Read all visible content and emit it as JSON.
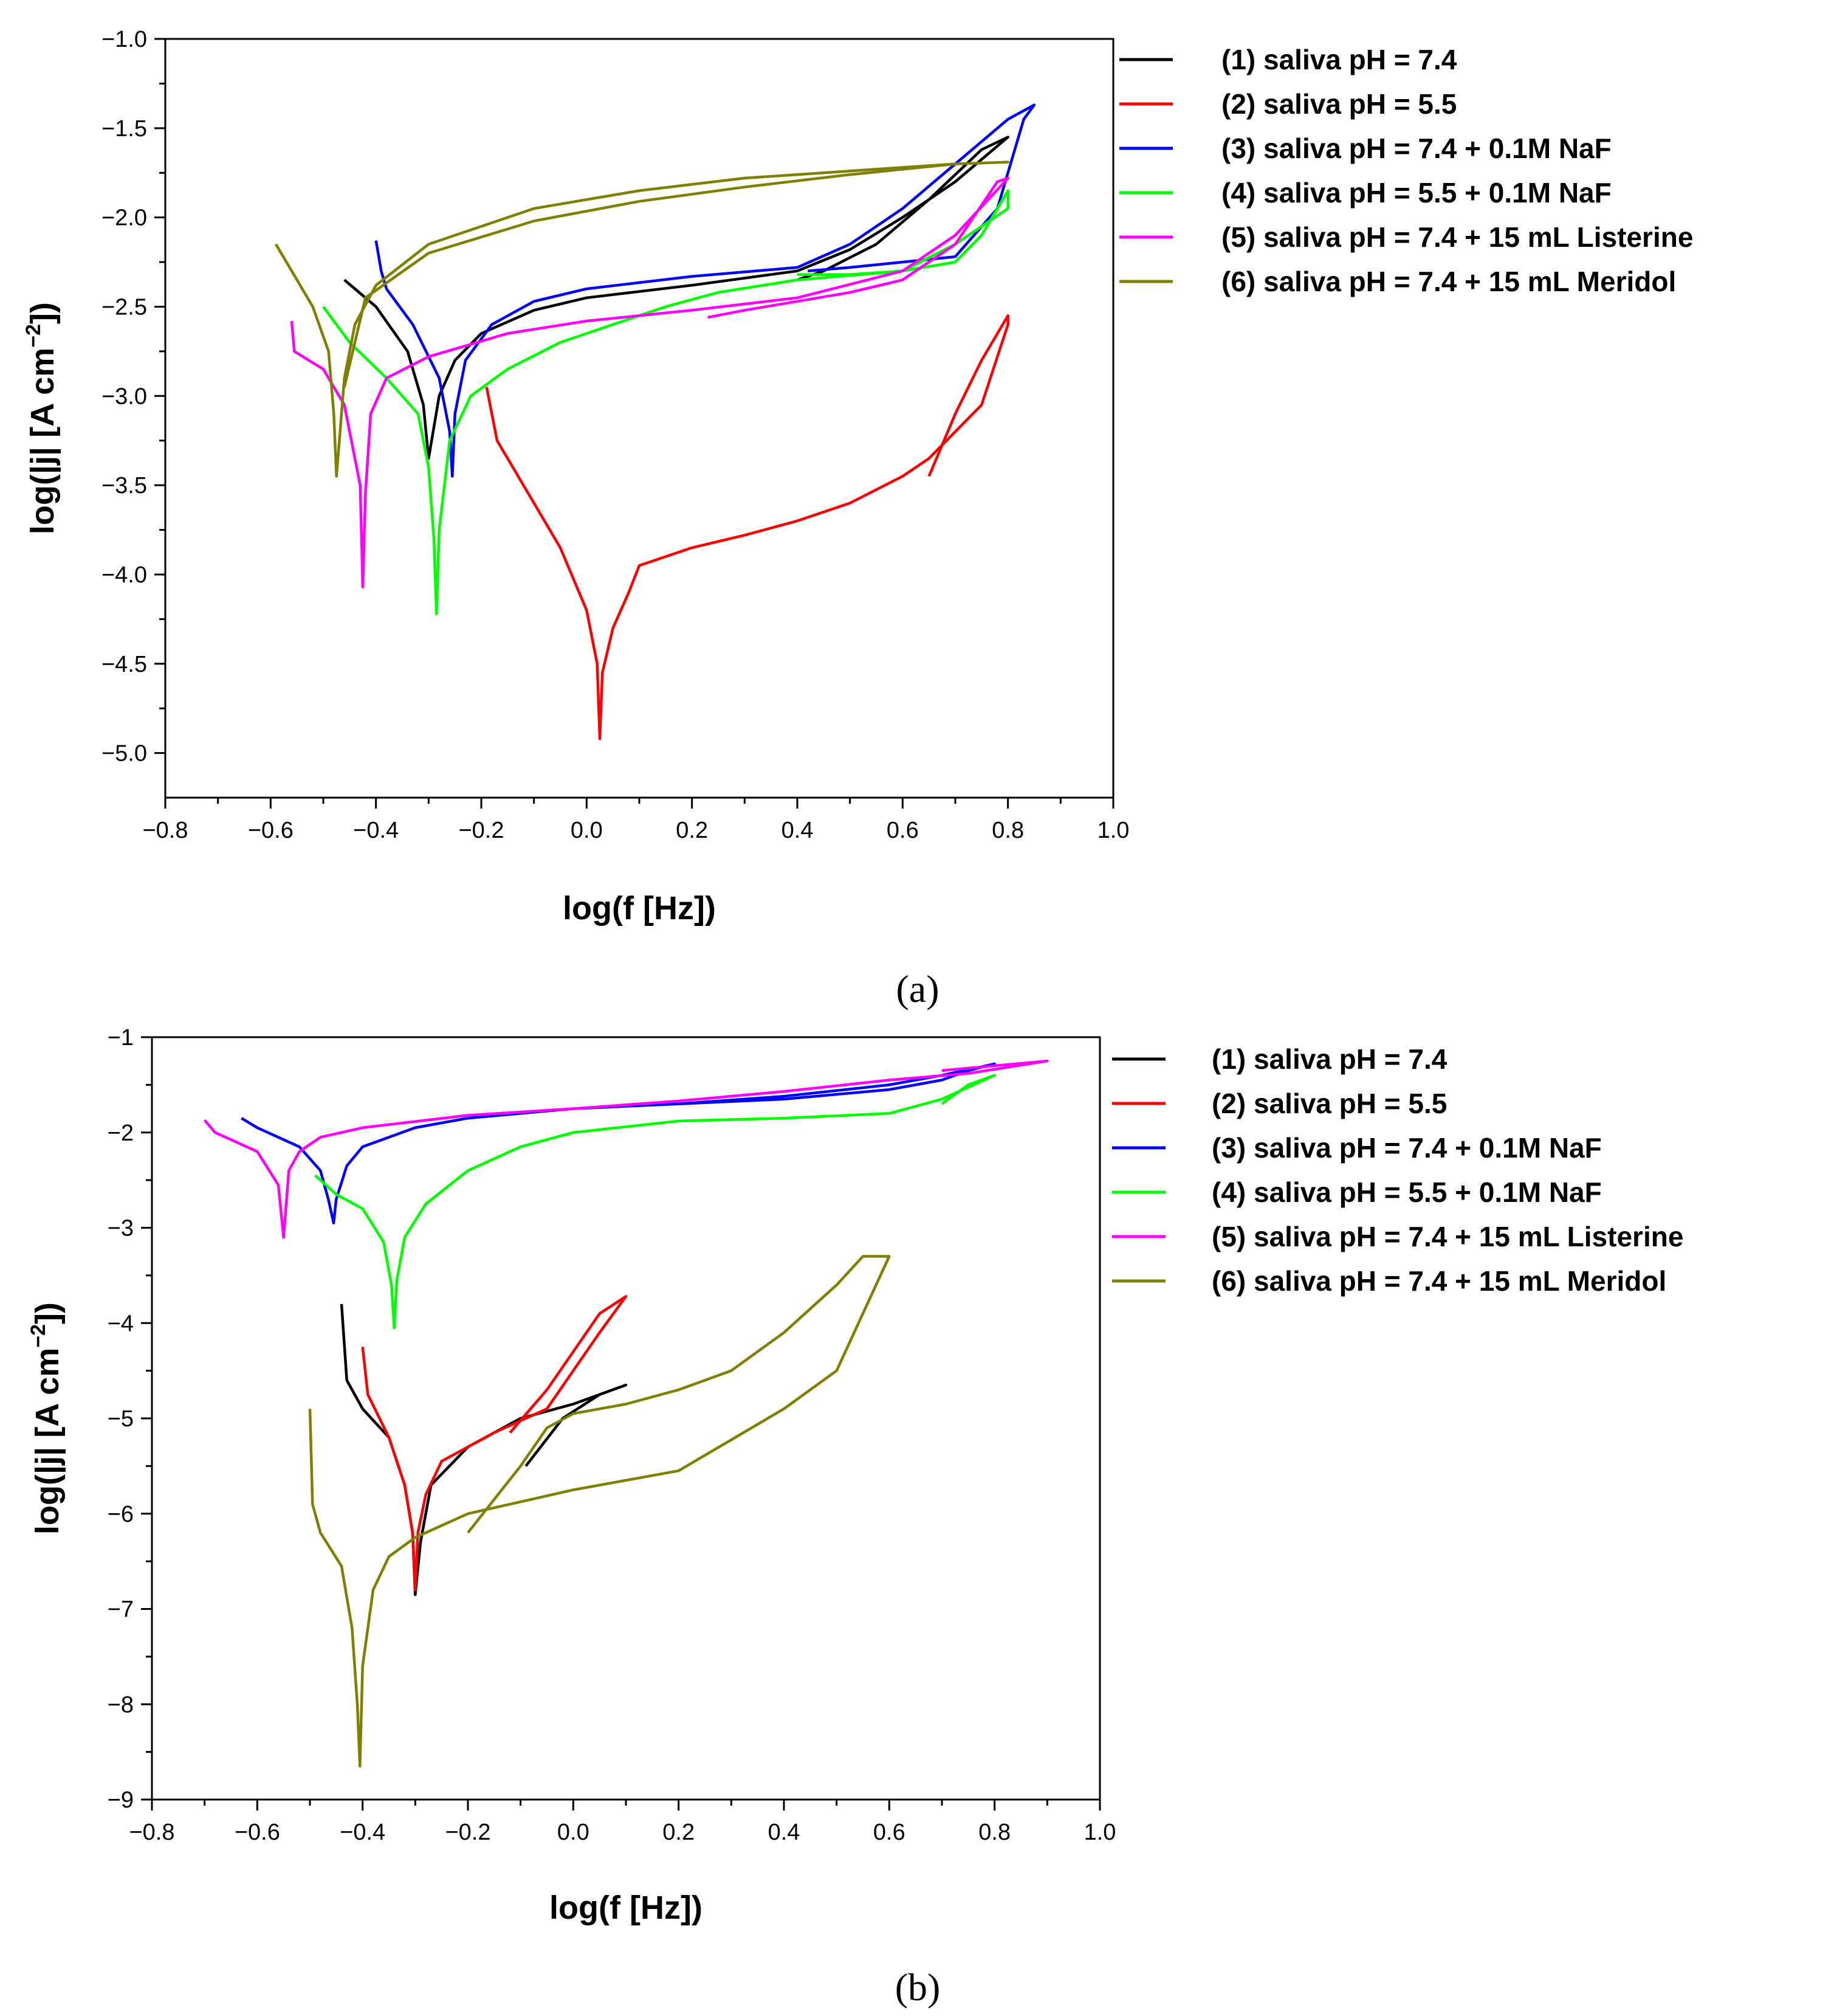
{
  "chart_data": [
    {
      "type": "line",
      "panel": "a",
      "caption": "(a)",
      "xlabel": "log(f [Hz])",
      "ylabel": "log(|j| [A cm−2])",
      "ylabel_parts": {
        "base": "log(|j| [A cm",
        "sup": "−2",
        "close": "])"
      },
      "xlim": [
        -0.8,
        1.0
      ],
      "ylim": [
        -5.25,
        -1.0
      ],
      "xticks": [
        -0.8,
        -0.6,
        -0.4,
        -0.2,
        0.0,
        0.2,
        0.4,
        0.6,
        0.8,
        1.0
      ],
      "xtick_labels": [
        "−0.8",
        "−0.6",
        "−0.4",
        "−0.2",
        "0.0",
        "0.2",
        "0.4",
        "0.6",
        "0.8",
        "1.0"
      ],
      "yticks": [
        -1.0,
        -1.5,
        -2.0,
        -2.5,
        -3.0,
        -3.5,
        -4.0,
        -4.5,
        -5.0
      ],
      "ytick_labels": [
        "−1.0",
        "−1.5",
        "−2.0",
        "−2.5",
        "−3.0",
        "−3.5",
        "−4.0",
        "−4.5",
        "−5.0"
      ],
      "legend_position": "right",
      "series": [
        {
          "name": "(1) saliva pH = 7.4",
          "color": "#000000",
          "x": [
            -0.46,
            -0.4,
            -0.34,
            -0.31,
            -0.3,
            -0.28,
            -0.25,
            -0.2,
            -0.1,
            0.0,
            0.2,
            0.4,
            0.5,
            0.6,
            0.7,
            0.78,
            0.8,
            0.75,
            0.65,
            0.55,
            0.45,
            0.4
          ],
          "y": [
            -2.35,
            -2.5,
            -2.75,
            -3.05,
            -3.35,
            -3.0,
            -2.8,
            -2.65,
            -2.52,
            -2.45,
            -2.38,
            -2.3,
            -2.18,
            -2.0,
            -1.8,
            -1.6,
            -1.55,
            -1.62,
            -1.9,
            -2.15,
            -2.3,
            -2.35
          ]
        },
        {
          "name": "(2) saliva pH = 5.5",
          "color": "#ff0000",
          "x": [
            -0.19,
            -0.17,
            -0.1,
            -0.05,
            0.0,
            0.02,
            0.025,
            0.03,
            0.05,
            0.08,
            0.1,
            0.2,
            0.3,
            0.4,
            0.5,
            0.6,
            0.65,
            0.7,
            0.75,
            0.8,
            0.8,
            0.75,
            0.7,
            0.65
          ],
          "y": [
            -2.95,
            -3.25,
            -3.6,
            -3.85,
            -4.2,
            -4.5,
            -4.92,
            -4.55,
            -4.3,
            -4.1,
            -3.95,
            -3.85,
            -3.78,
            -3.7,
            -3.6,
            -3.45,
            -3.35,
            -3.2,
            -3.05,
            -2.6,
            -2.55,
            -2.8,
            -3.1,
            -3.45
          ]
        },
        {
          "name": "(3) saliva pH = 7.4 + 0.1M NaF",
          "color": "#0000ff",
          "x": [
            -0.4,
            -0.39,
            -0.38,
            -0.33,
            -0.28,
            -0.26,
            -0.255,
            -0.25,
            -0.23,
            -0.18,
            -0.1,
            0.0,
            0.2,
            0.4,
            0.5,
            0.6,
            0.7,
            0.8,
            0.85,
            0.83,
            0.78,
            0.7,
            0.6,
            0.5,
            0.42
          ],
          "y": [
            -2.13,
            -2.3,
            -2.4,
            -2.6,
            -2.9,
            -3.2,
            -3.45,
            -3.1,
            -2.8,
            -2.6,
            -2.47,
            -2.4,
            -2.33,
            -2.28,
            -2.15,
            -1.95,
            -1.7,
            -1.45,
            -1.37,
            -1.45,
            -1.95,
            -2.22,
            -2.25,
            -2.28,
            -2.3
          ]
        },
        {
          "name": "(4) saliva pH = 5.5 + 0.1M NaF",
          "color": "#00ff00",
          "x": [
            -0.5,
            -0.45,
            -0.38,
            -0.32,
            -0.3,
            -0.29,
            -0.285,
            -0.28,
            -0.26,
            -0.22,
            -0.15,
            -0.05,
            0.05,
            0.15,
            0.25,
            0.4,
            0.6,
            0.7,
            0.8,
            0.8,
            0.75,
            0.7,
            0.6,
            0.5,
            0.4
          ],
          "y": [
            -2.5,
            -2.7,
            -2.9,
            -3.1,
            -3.4,
            -3.8,
            -4.22,
            -3.75,
            -3.25,
            -3.0,
            -2.85,
            -2.7,
            -2.6,
            -2.5,
            -2.42,
            -2.35,
            -2.3,
            -2.15,
            -1.95,
            -1.85,
            -2.1,
            -2.25,
            -2.3,
            -2.32,
            -2.32
          ]
        },
        {
          "name": "(5) saliva pH = 7.4 + 15 mL Listerine",
          "color": "#ff00ff",
          "x": [
            -0.56,
            -0.555,
            -0.5,
            -0.46,
            -0.43,
            -0.425,
            -0.42,
            -0.41,
            -0.38,
            -0.3,
            -0.15,
            0.0,
            0.2,
            0.4,
            0.6,
            0.7,
            0.8,
            0.78,
            0.7,
            0.6,
            0.5,
            0.4,
            0.3,
            0.23
          ],
          "y": [
            -2.58,
            -2.75,
            -2.85,
            -3.05,
            -3.5,
            -4.07,
            -3.55,
            -3.1,
            -2.9,
            -2.78,
            -2.65,
            -2.58,
            -2.52,
            -2.45,
            -2.3,
            -2.1,
            -1.78,
            -1.8,
            -2.15,
            -2.35,
            -2.42,
            -2.47,
            -2.52,
            -2.56
          ]
        },
        {
          "name": "(6) saliva pH = 7.4 + 15 mL Meridol",
          "color": "#808000",
          "x": [
            -0.59,
            -0.56,
            -0.52,
            -0.49,
            -0.48,
            -0.475,
            -0.46,
            -0.44,
            -0.4,
            -0.3,
            -0.1,
            0.1,
            0.3,
            0.5,
            0.7,
            0.8,
            0.7,
            0.5,
            0.3,
            0.1,
            -0.1,
            -0.3,
            -0.42,
            -0.46
          ],
          "y": [
            -2.15,
            -2.3,
            -2.5,
            -2.75,
            -3.1,
            -3.45,
            -2.9,
            -2.6,
            -2.38,
            -2.15,
            -1.95,
            -1.85,
            -1.78,
            -1.74,
            -1.7,
            -1.69,
            -1.7,
            -1.76,
            -1.83,
            -1.91,
            -2.02,
            -2.2,
            -2.45,
            -2.95
          ]
        }
      ]
    },
    {
      "type": "line",
      "panel": "b",
      "caption": "(b)",
      "xlabel": "log(f [Hz])",
      "ylabel": "log(|j| [A cm−2])",
      "ylabel_parts": {
        "base": "log(|j| [A cm",
        "sup": "−2",
        "close": "])"
      },
      "xlim": [
        -0.8,
        1.0
      ],
      "ylim": [
        -9,
        -1
      ],
      "xticks": [
        -0.8,
        -0.6,
        -0.4,
        -0.2,
        0.0,
        0.2,
        0.4,
        0.6,
        0.8,
        1.0
      ],
      "xtick_labels": [
        "−0.8",
        "−0.6",
        "−0.4",
        "−0.2",
        "0.0",
        "0.2",
        "0.4",
        "0.6",
        "0.8",
        "1.0"
      ],
      "yticks": [
        -1,
        -2,
        -3,
        -4,
        -5,
        -6,
        -7,
        -8,
        -9
      ],
      "ytick_labels": [
        "−1",
        "−2",
        "−3",
        "−4",
        "−5",
        "−6",
        "−7",
        "−8",
        "−9"
      ],
      "legend_position": "right",
      "series": [
        {
          "name": "(1) saliva pH = 7.4",
          "color": "#000000",
          "x": [
            -0.44,
            -0.43,
            -0.4,
            -0.35,
            -0.32,
            -0.305,
            -0.3,
            -0.29,
            -0.27,
            -0.2,
            -0.1,
            0.0,
            0.1,
            0.05,
            -0.02,
            -0.09
          ],
          "y": [
            -3.8,
            -4.6,
            -4.9,
            -5.2,
            -5.7,
            -6.2,
            -6.85,
            -6.3,
            -5.7,
            -5.3,
            -5.0,
            -4.85,
            -4.65,
            -4.75,
            -5.0,
            -5.5
          ]
        },
        {
          "name": "(2) saliva pH = 5.5",
          "color": "#ff0000",
          "x": [
            -0.4,
            -0.39,
            -0.35,
            -0.32,
            -0.305,
            -0.3,
            -0.295,
            -0.28,
            -0.25,
            -0.15,
            -0.05,
            0.05,
            0.1,
            0.05,
            -0.05,
            -0.12
          ],
          "y": [
            -4.25,
            -4.75,
            -5.2,
            -5.7,
            -6.2,
            -6.8,
            -6.2,
            -5.8,
            -5.45,
            -5.15,
            -4.9,
            -4.1,
            -3.72,
            -3.9,
            -4.7,
            -5.15
          ]
        },
        {
          "name": "(3) saliva pH = 7.4 + 0.1M NaF",
          "color": "#0000ff",
          "x": [
            -0.63,
            -0.6,
            -0.52,
            -0.48,
            -0.465,
            -0.455,
            -0.45,
            -0.43,
            -0.4,
            -0.3,
            -0.2,
            0.0,
            0.2,
            0.4,
            0.6,
            0.7,
            0.8,
            0.75,
            0.7,
            0.6,
            0.4,
            0.2
          ],
          "y": [
            -1.85,
            -1.95,
            -2.15,
            -2.4,
            -2.7,
            -2.95,
            -2.7,
            -2.35,
            -2.15,
            -1.95,
            -1.85,
            -1.75,
            -1.7,
            -1.62,
            -1.5,
            -1.4,
            -1.28,
            -1.35,
            -1.45,
            -1.55,
            -1.65,
            -1.7
          ]
        },
        {
          "name": "(4) saliva pH = 5.5 + 0.1M NaF",
          "color": "#00ff00",
          "x": [
            -0.49,
            -0.45,
            -0.4,
            -0.36,
            -0.345,
            -0.34,
            -0.335,
            -0.32,
            -0.28,
            -0.2,
            -0.1,
            0.0,
            0.2,
            0.4,
            0.6,
            0.7,
            0.8,
            0.75,
            0.7
          ],
          "y": [
            -2.45,
            -2.65,
            -2.8,
            -3.15,
            -3.6,
            -4.05,
            -3.55,
            -3.1,
            -2.75,
            -2.4,
            -2.15,
            -2.0,
            -1.88,
            -1.85,
            -1.8,
            -1.65,
            -1.4,
            -1.5,
            -1.7
          ]
        },
        {
          "name": "(5) saliva pH = 7.4 + 15 mL Listerine",
          "color": "#ff00ff",
          "x": [
            -0.7,
            -0.68,
            -0.6,
            -0.56,
            -0.55,
            -0.545,
            -0.54,
            -0.52,
            -0.48,
            -0.4,
            -0.2,
            0.0,
            0.2,
            0.4,
            0.6,
            0.75,
            0.9,
            0.8,
            0.7
          ],
          "y": [
            -1.87,
            -2.0,
            -2.2,
            -2.55,
            -3.1,
            -2.75,
            -2.4,
            -2.2,
            -2.05,
            -1.95,
            -1.82,
            -1.75,
            -1.67,
            -1.57,
            -1.45,
            -1.38,
            -1.25,
            -1.3,
            -1.35
          ]
        },
        {
          "name": "(6) saliva pH = 7.4 + 15 mL Meridol",
          "color": "#808000",
          "x": [
            -0.5,
            -0.495,
            -0.48,
            -0.44,
            -0.42,
            -0.41,
            -0.405,
            -0.4,
            -0.38,
            -0.35,
            -0.3,
            -0.2,
            0.0,
            0.2,
            0.4,
            0.5,
            0.6,
            0.55,
            0.5,
            0.4,
            0.3,
            0.2,
            0.1,
            0.0,
            -0.05,
            -0.1,
            -0.15,
            -0.2
          ],
          "y": [
            -4.9,
            -5.9,
            -6.2,
            -6.55,
            -7.2,
            -8.0,
            -8.65,
            -7.6,
            -6.8,
            -6.45,
            -6.25,
            -6.0,
            -5.75,
            -5.55,
            -4.9,
            -4.5,
            -3.3,
            -3.3,
            -3.6,
            -4.1,
            -4.5,
            -4.7,
            -4.85,
            -4.95,
            -5.1,
            -5.5,
            -5.85,
            -6.2
          ]
        }
      ]
    }
  ]
}
